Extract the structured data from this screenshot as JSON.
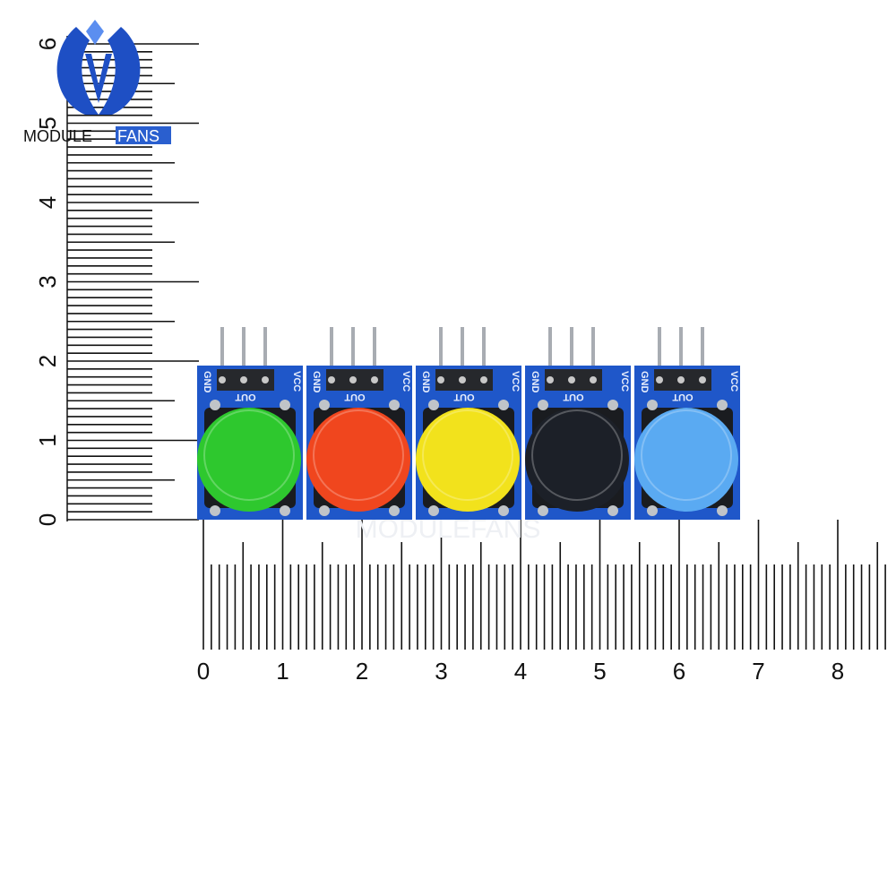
{
  "logo": {
    "text_left": "MODULE",
    "text_right": "FANS",
    "colors": {
      "primary": "#1e4fc4",
      "light": "#5b8ef0"
    }
  },
  "watermark": "MODULEFANS",
  "ruler_vertical": {
    "labels": [
      "0",
      "1",
      "2",
      "3",
      "4",
      "5",
      "6"
    ]
  },
  "ruler_horizontal": {
    "labels": [
      "0",
      "1",
      "2",
      "3",
      "4",
      "5",
      "6",
      "7",
      "8"
    ]
  },
  "pcb_color": "#1f57c9",
  "pin_labels": {
    "gnd": "GND",
    "out": "OUT",
    "vcc": "VCC"
  },
  "modules": [
    {
      "cap_color": "#2ec82e"
    },
    {
      "cap_color": "#f0461e"
    },
    {
      "cap_color": "#f2e21c"
    },
    {
      "cap_color": "#1c2028"
    },
    {
      "cap_color": "#5aaaf2"
    }
  ]
}
